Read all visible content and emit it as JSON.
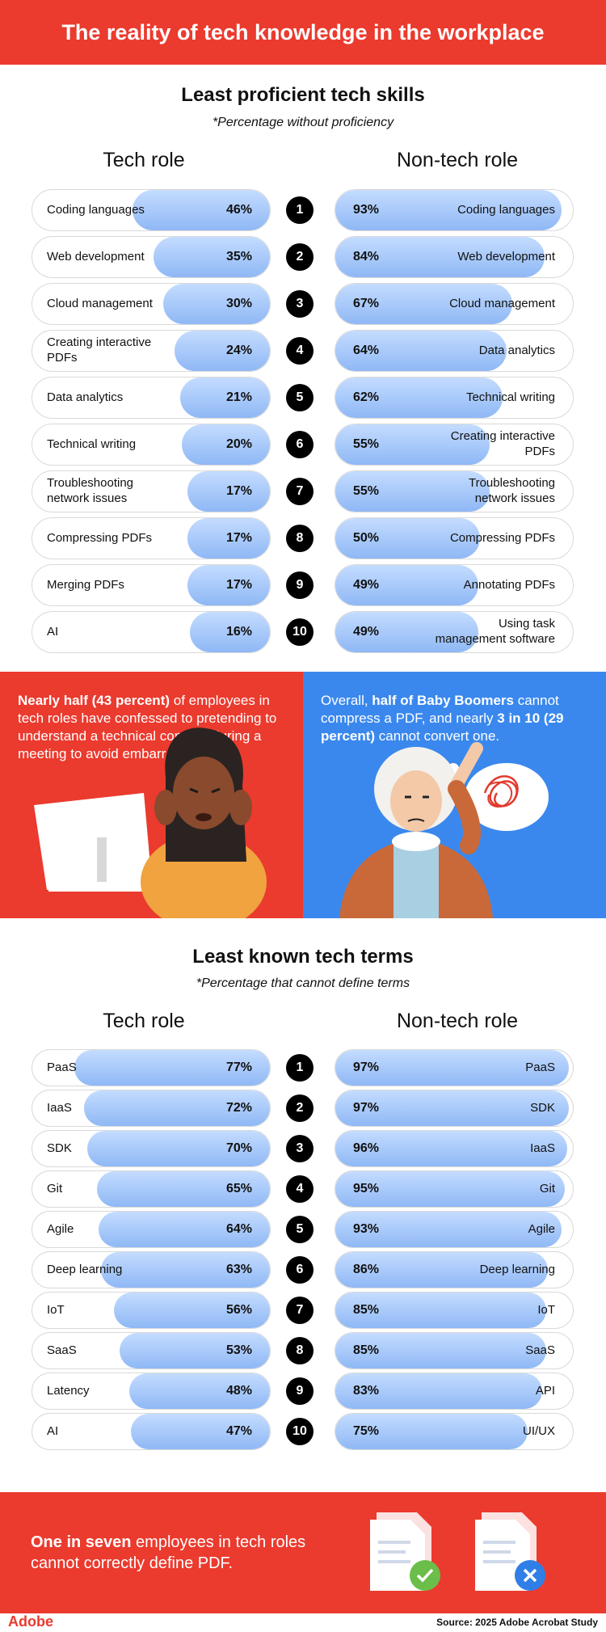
{
  "header": {
    "title": "The reality of tech knowledge in the workplace"
  },
  "chart_data": [
    {
      "type": "bar",
      "title": "Least proficient tech skills",
      "subtitle": "*Percentage without proficiency",
      "ranks": [
        "1",
        "2",
        "3",
        "4",
        "5",
        "6",
        "7",
        "8",
        "9",
        "10"
      ],
      "series": [
        {
          "name": "Tech role",
          "categories": [
            "Coding languages",
            "Web development",
            "Cloud management",
            "Creating interactive PDFs",
            "Data analytics",
            "Technical writing",
            "Troubleshooting network issues",
            "Compressing PDFs",
            "Merging PDFs",
            "AI"
          ],
          "values": [
            46,
            35,
            30,
            24,
            21,
            20,
            17,
            17,
            17,
            16
          ],
          "labels": [
            "46%",
            "35%",
            "30%",
            "24%",
            "21%",
            "20%",
            "17%",
            "17%",
            "17%",
            "16%"
          ]
        },
        {
          "name": "Non-tech role",
          "categories": [
            "Coding languages",
            "Web development",
            "Cloud management",
            "Data analytics",
            "Technical writing",
            "Creating interactive PDFs",
            "Troubleshooting network issues",
            "Compressing PDFs",
            "Annotating PDFs",
            "Using task management software"
          ],
          "values": [
            93,
            84,
            67,
            64,
            62,
            55,
            55,
            50,
            49,
            49
          ],
          "labels": [
            "93%",
            "84%",
            "67%",
            "64%",
            "62%",
            "55%",
            "55%",
            "50%",
            "49%",
            "49%"
          ]
        }
      ]
    },
    {
      "type": "bar",
      "title": "Least known tech terms",
      "subtitle": "*Percentage that cannot define terms",
      "ranks": [
        "1",
        "2",
        "3",
        "4",
        "5",
        "6",
        "7",
        "8",
        "9",
        "10"
      ],
      "series": [
        {
          "name": "Tech role",
          "categories": [
            "PaaS",
            "IaaS",
            "SDK",
            "Git",
            "Agile",
            "Deep learning",
            "IoT",
            "SaaS",
            "Latency",
            "AI"
          ],
          "values": [
            77,
            72,
            70,
            65,
            64,
            63,
            56,
            53,
            48,
            47
          ],
          "labels": [
            "77%",
            "72%",
            "70%",
            "65%",
            "64%",
            "63%",
            "56%",
            "53%",
            "48%",
            "47%"
          ]
        },
        {
          "name": "Non-tech role",
          "categories": [
            "PaaS",
            "SDK",
            "IaaS",
            "Git",
            "Agile",
            "Deep learning",
            "IoT",
            "SaaS",
            "API",
            "UI/UX"
          ],
          "values": [
            97,
            97,
            96,
            95,
            93,
            86,
            85,
            85,
            83,
            75
          ],
          "labels": [
            "97%",
            "97%",
            "96%",
            "95%",
            "93%",
            "86%",
            "85%",
            "85%",
            "83%",
            "75%"
          ]
        }
      ]
    }
  ],
  "callouts": {
    "left": {
      "b1": "Nearly half (43 percent)",
      "t1": " of employees in tech roles have confessed to pretending to understand a technical concept during a meeting to avoid embarrassment."
    },
    "right": {
      "t0": "Overall, ",
      "b1": "half of Baby Boomers",
      "t1": " cannot compress a PDF, and nearly ",
      "b2": "3 in 10 (29 percent)",
      "t2": " cannot convert one."
    }
  },
  "footer": {
    "b1": "One in seven",
    "t1": " employees in tech roles cannot correctly define PDF.",
    "logo": "Adobe",
    "source": "Source: 2025 Adobe Acrobat Study"
  },
  "colors": {
    "brand_red": "#EB3A2E",
    "blue_panel": "#3A88EE",
    "bar_fill": "#9EC3F8",
    "check_green": "#6BBE4A",
    "cross_blue": "#2F7FE6"
  }
}
